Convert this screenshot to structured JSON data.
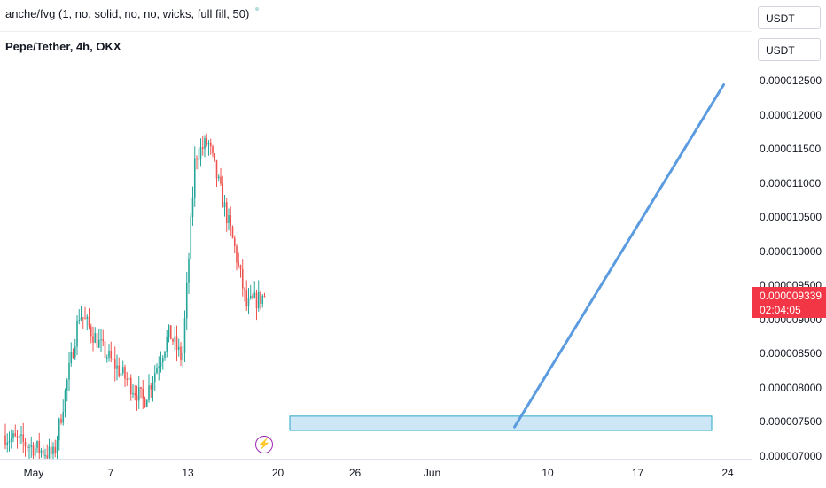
{
  "header": {
    "indicator_label": "anche/fvg (1, no, solid, no, no, wicks, full fill, 50)",
    "symbol_title": "Pepe/Tether, 4h, OKX"
  },
  "price_axis": {
    "unit_label_top": "USDT",
    "unit_label_second": "USDT",
    "ticks": [
      "0.000012500",
      "0.000012000",
      "0.000011500",
      "0.000011000",
      "0.000010500",
      "0.000010000",
      "0.000009500",
      "0.000009000",
      "0.000008500",
      "0.000008000",
      "0.000007500",
      "0.000007000"
    ],
    "current_price": "0.000009339",
    "countdown": "02:04:05"
  },
  "time_axis": {
    "ticks": [
      "May",
      "7",
      "13",
      "20",
      "26",
      "Jun",
      "10",
      "17",
      "24"
    ]
  },
  "colors": {
    "up": "#26a69a",
    "down": "#ef5350",
    "trendline": "#5b9be0",
    "zone_fill": "#cde7f7",
    "zone_border": "#26a8c4",
    "price_badge": "#f23645"
  },
  "chart_data": {
    "type": "candlestick",
    "symbol": "Pepe/Tether",
    "interval": "4h",
    "exchange": "OKX",
    "y_range": [
      6.9e-06,
      1.28e-05
    ],
    "last_price": 9.339e-06,
    "swing_points": [
      {
        "date": "May 1",
        "price": 7.3e-06
      },
      {
        "date": "May 3",
        "price": 7e-06
      },
      {
        "date": "May 5",
        "price": 9.1e-06
      },
      {
        "date": "May 7",
        "price": 8.5e-06
      },
      {
        "date": "May 10",
        "price": 7.8e-06
      },
      {
        "date": "May 12",
        "price": 8.8e-06
      },
      {
        "date": "May 13",
        "price": 8.4e-06
      },
      {
        "date": "May 14",
        "price": 1.14e-05
      },
      {
        "date": "May 15",
        "price": 1.16e-05
      },
      {
        "date": "May 17",
        "price": 1.01e-05
      },
      {
        "date": "May 18",
        "price": 9.2e-06
      }
    ],
    "drawings": {
      "zone": {
        "start": "May 21",
        "end": "Jun 22",
        "low": 7.37e-06,
        "high": 7.58e-06
      },
      "trendline": {
        "start": {
          "date": "Jun 7",
          "price": 7.42e-06
        },
        "end": {
          "date": "Jun 23",
          "price": 1.244e-05
        }
      }
    }
  }
}
